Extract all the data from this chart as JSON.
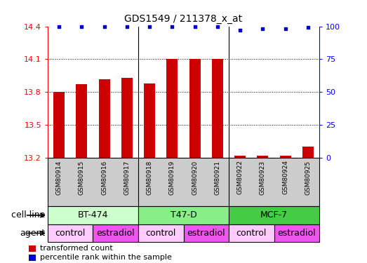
{
  "title": "GDS1549 / 211378_x_at",
  "samples": [
    "GSM80914",
    "GSM80915",
    "GSM80916",
    "GSM80917",
    "GSM80918",
    "GSM80919",
    "GSM80920",
    "GSM80921",
    "GSM80922",
    "GSM80923",
    "GSM80924",
    "GSM80925"
  ],
  "red_values": [
    13.8,
    13.87,
    13.92,
    13.93,
    13.88,
    14.1,
    14.1,
    14.1,
    13.22,
    13.22,
    13.22,
    13.3
  ],
  "blue_values": [
    100,
    100,
    100,
    100,
    100,
    100,
    100,
    100,
    97,
    98,
    98,
    99
  ],
  "ylim_left": [
    13.2,
    14.4
  ],
  "ylim_right": [
    0,
    100
  ],
  "yticks_left": [
    13.2,
    13.5,
    13.8,
    14.1,
    14.4
  ],
  "yticks_right": [
    0,
    25,
    50,
    75,
    100
  ],
  "cell_lines": [
    {
      "label": "BT-474",
      "start": 0,
      "end": 3,
      "color": "#ccffcc"
    },
    {
      "label": "T47-D",
      "start": 4,
      "end": 7,
      "color": "#88ee88"
    },
    {
      "label": "MCF-7",
      "start": 8,
      "end": 11,
      "color": "#44cc44"
    }
  ],
  "agents": [
    {
      "label": "control",
      "start": 0,
      "end": 1,
      "color": "#ffccff"
    },
    {
      "label": "estradiol",
      "start": 2,
      "end": 3,
      "color": "#ee55ee"
    },
    {
      "label": "control",
      "start": 4,
      "end": 5,
      "color": "#ffccff"
    },
    {
      "label": "estradiol",
      "start": 6,
      "end": 7,
      "color": "#ee55ee"
    },
    {
      "label": "control",
      "start": 8,
      "end": 9,
      "color": "#ffccff"
    },
    {
      "label": "estradiol",
      "start": 10,
      "end": 11,
      "color": "#ee55ee"
    }
  ],
  "bar_color": "#cc0000",
  "dot_color": "#0000cc",
  "bar_width": 0.5,
  "xtick_bg": "#cccccc"
}
